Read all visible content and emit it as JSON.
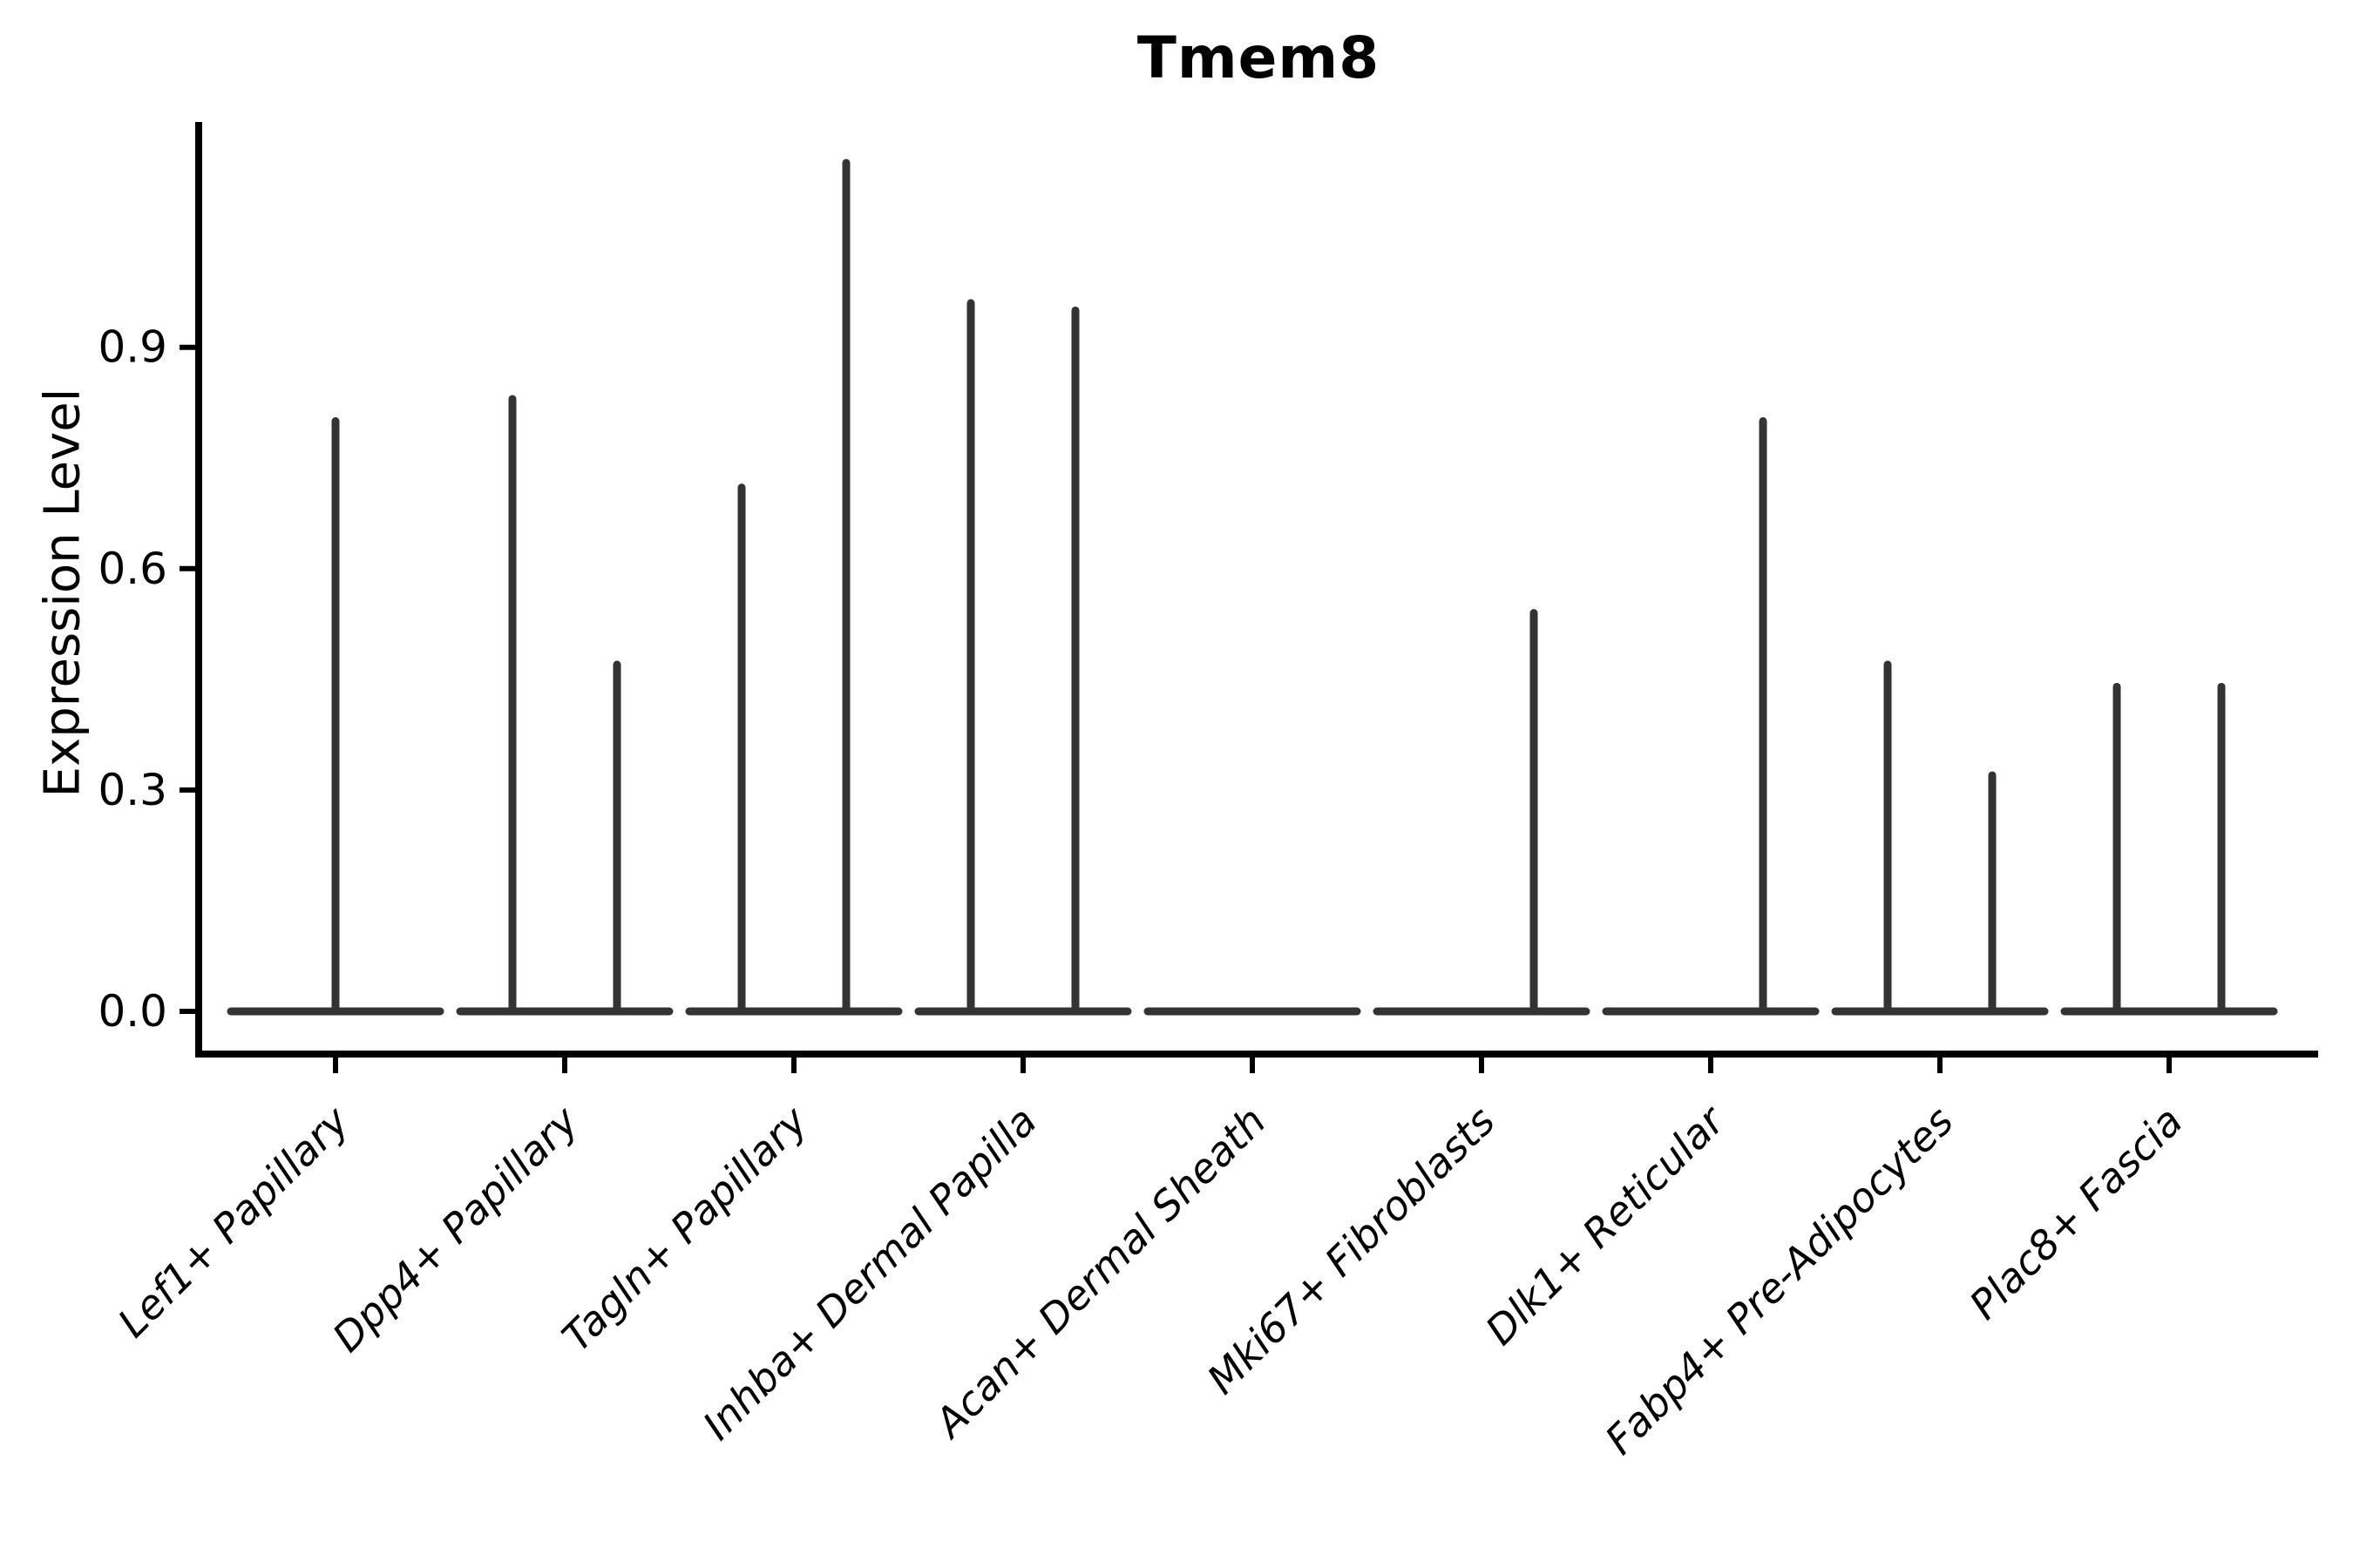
{
  "chart_data": {
    "type": "violin",
    "title": "Tmem8",
    "ylabel": "Expression Level",
    "xlabel": "",
    "ylim": [
      0,
      1.21
    ],
    "yticks": [
      0.0,
      0.3,
      0.6,
      0.9
    ],
    "ytick_labels": [
      "0.0",
      "0.3",
      "0.6",
      "0.9"
    ],
    "grid": false,
    "legend_position": "none",
    "violin_color": "#333333",
    "axis_color": "#000000",
    "label_style": "italic, rotated 45deg",
    "categories": [
      "Lef1+ Papillary",
      "Dpp4+ Papillary",
      "Tagln+ Papillary",
      "Inhba+ Dermal Papilla",
      "Acan+ Dermal Sheath",
      "Mki67+ Fibroblasts",
      "Dlk1+ Reticular",
      "Fabp4+ Pre-Adipocytes",
      "Plac8+ Fascia"
    ],
    "violins": [
      {
        "category": "Lef1+ Papillary",
        "spikes": [
          {
            "pos": "center",
            "max": 0.8
          }
        ]
      },
      {
        "category": "Dpp4+ Papillary",
        "spikes": [
          {
            "pos": "left",
            "max": 0.83
          },
          {
            "pos": "right",
            "max": 0.47
          }
        ]
      },
      {
        "category": "Tagln+ Papillary",
        "spikes": [
          {
            "pos": "left",
            "max": 0.71
          },
          {
            "pos": "right",
            "max": 1.15
          }
        ]
      },
      {
        "category": "Inhba+ Dermal Papilla",
        "spikes": [
          {
            "pos": "left",
            "max": 0.96
          },
          {
            "pos": "right",
            "max": 0.95
          }
        ]
      },
      {
        "category": "Acan+ Dermal Sheath",
        "spikes": []
      },
      {
        "category": "Mki67+ Fibroblasts",
        "spikes": [
          {
            "pos": "right",
            "max": 0.54
          }
        ]
      },
      {
        "category": "Dlk1+ Reticular",
        "spikes": [
          {
            "pos": "right",
            "max": 0.8
          }
        ]
      },
      {
        "category": "Fabp4+ Pre-Adipocytes",
        "spikes": [
          {
            "pos": "left",
            "max": 0.47
          },
          {
            "pos": "right",
            "max": 0.32
          }
        ]
      },
      {
        "category": "Plac8+ Fascia",
        "spikes": [
          {
            "pos": "left",
            "max": 0.44
          },
          {
            "pos": "right",
            "max": 0.44
          }
        ]
      }
    ]
  }
}
